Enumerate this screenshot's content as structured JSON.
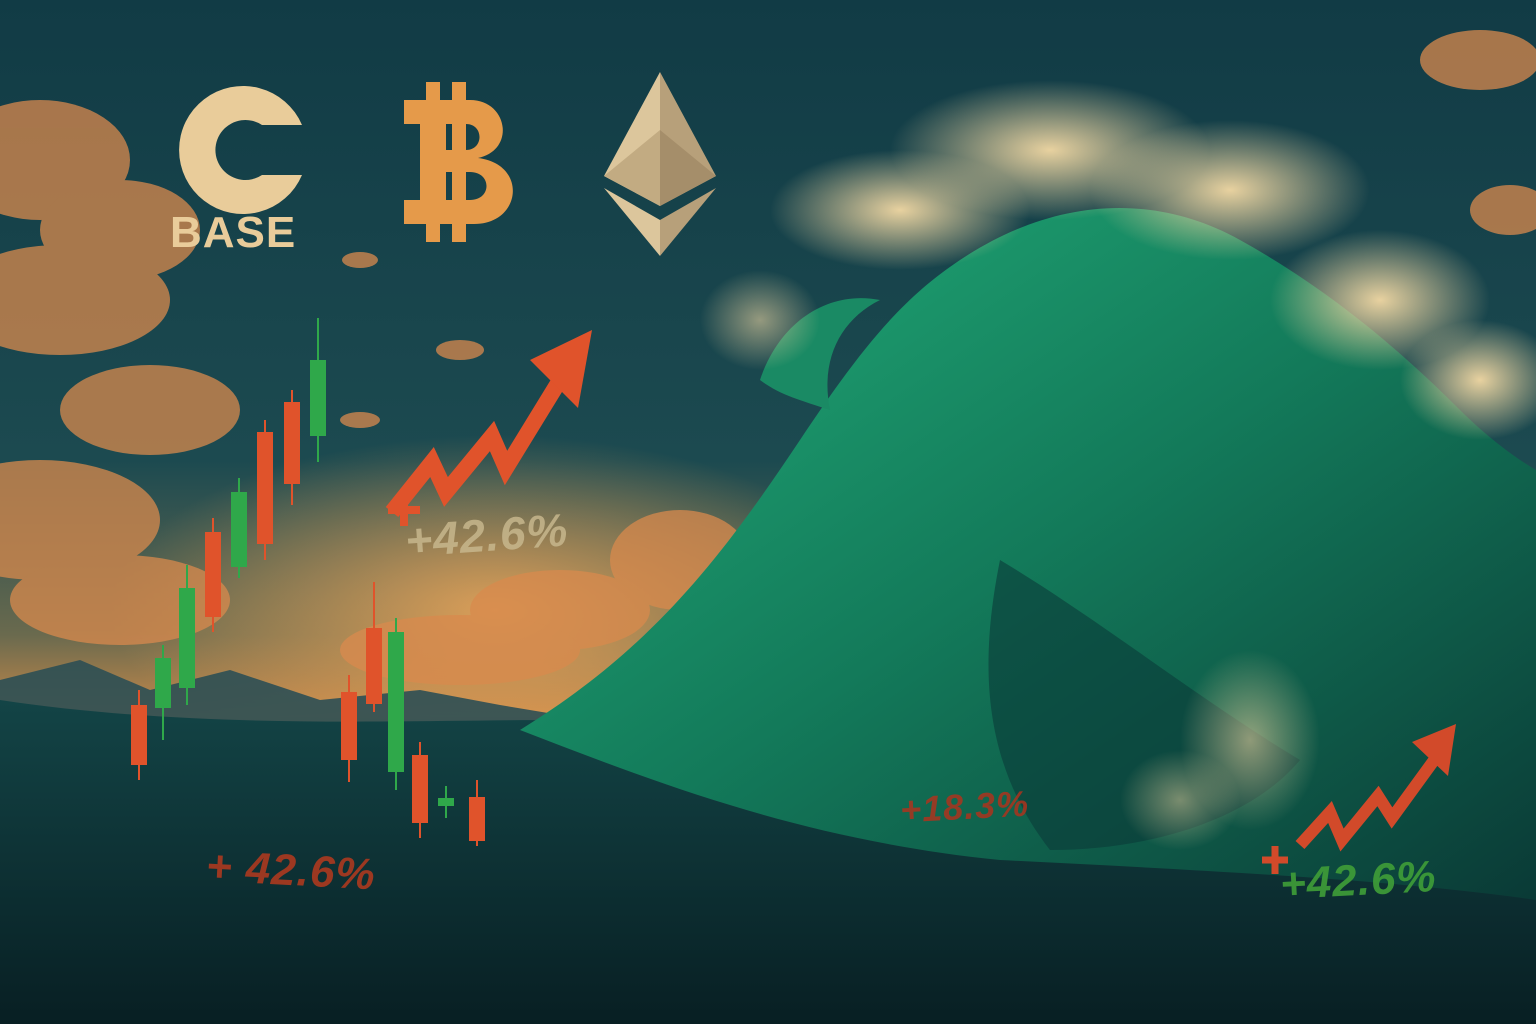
{
  "logos": {
    "base": {
      "icon": "base-c-logo-icon",
      "word": "BASE",
      "color": "#e9cc9a"
    },
    "bitcoin": {
      "icon": "bitcoin-logo-icon",
      "color": "#e59a4a"
    },
    "ethereum": {
      "icon": "ethereum-logo-icon",
      "color": "#d4bf93"
    }
  },
  "percent_labels": {
    "top": "+42.6%",
    "bottom_left": "+ 42.6%",
    "mid": "+18.3%",
    "right": "+42.6%"
  },
  "colors": {
    "sky_top": "#0f3a44",
    "sky_glow": "#d98a45",
    "wave_green": "#1f9a6b",
    "sea_dark": "#0b2a2e",
    "candle_up": "#2fa84a",
    "candle_down": "#e0532b",
    "arrow": "#e0532b"
  }
}
